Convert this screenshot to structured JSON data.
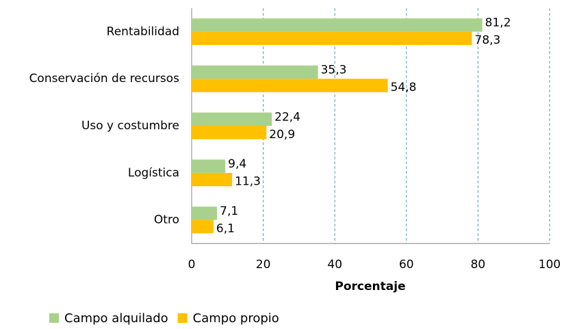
{
  "chart_data": {
    "type": "bar",
    "orientation": "horizontal",
    "categories": [
      "Rentabilidad",
      "Conservación de recursos",
      "Uso y costumbre",
      "Logística",
      "Otro"
    ],
    "series": [
      {
        "name": "Campo alquilado",
        "color": "#a9d18e",
        "values": [
          81.2,
          35.3,
          22.4,
          9.4,
          7.1
        ],
        "value_labels": [
          "81,2",
          "35,3",
          "22,4",
          "9,4",
          "7,1"
        ]
      },
      {
        "name": "Campo propio",
        "color": "#ffc000",
        "values": [
          78.3,
          54.8,
          20.9,
          11.3,
          6.1
        ],
        "value_labels": [
          "78,3",
          "54,8",
          "20,9",
          "11,3",
          "6,1"
        ]
      }
    ],
    "xlabel": "Porcentaje",
    "xlim": [
      0,
      100
    ],
    "xticks": [
      0,
      20,
      40,
      60,
      80,
      100
    ],
    "grid": true,
    "legend": "bottom-left"
  }
}
